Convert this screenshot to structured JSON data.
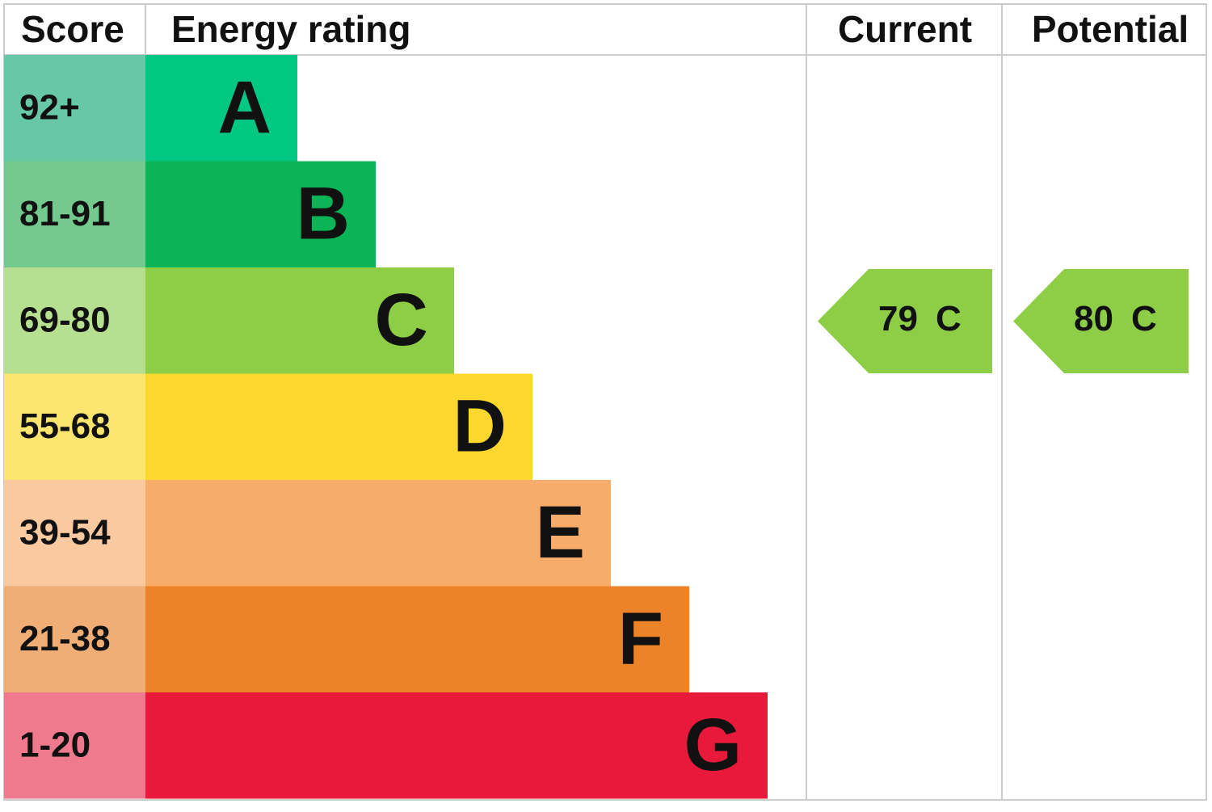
{
  "header": {
    "score": "Score",
    "rating": "Energy rating",
    "current": "Current",
    "potential": "Potential"
  },
  "bands": [
    {
      "range": "92+",
      "letter": "A",
      "color": "#00c781",
      "score_color": "#66c8a6"
    },
    {
      "range": "81-91",
      "letter": "B",
      "color": "#0cb458",
      "score_color": "#73c98e"
    },
    {
      "range": "69-80",
      "letter": "C",
      "color": "#8dce46",
      "score_color": "#b6e08f"
    },
    {
      "range": "55-68",
      "letter": "D",
      "color": "#fcd82f",
      "score_color": "#fbe56f"
    },
    {
      "range": "39-54",
      "letter": "E",
      "color": "#f7ac6a",
      "score_color": "#f9c9a0"
    },
    {
      "range": "21-38",
      "letter": "F",
      "color": "#ed8329",
      "score_color": "#f0ae76"
    },
    {
      "range": "1-20",
      "letter": "G",
      "color": "#e8193a",
      "score_color": "#ef7a8e"
    }
  ],
  "current": {
    "score": 79,
    "band": "C"
  },
  "potential": {
    "score": 80,
    "band": "C"
  }
}
